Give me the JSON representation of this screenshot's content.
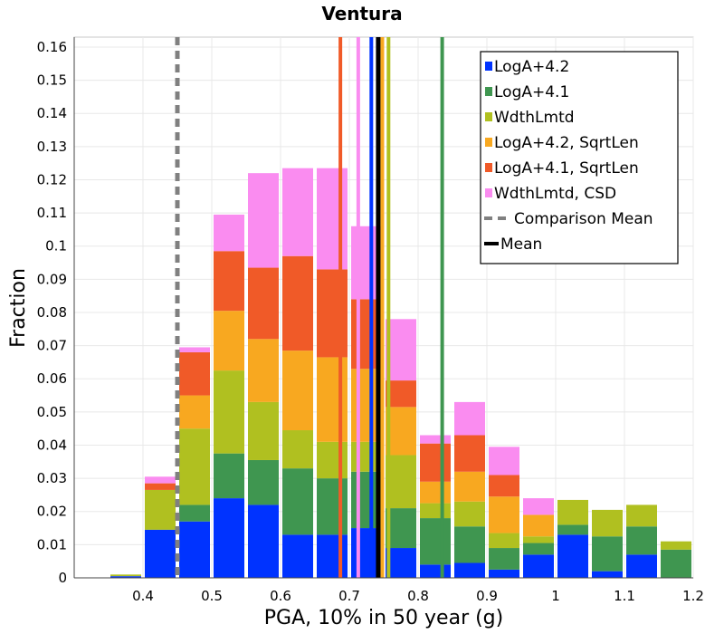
{
  "chart_data": {
    "type": "bar",
    "stacked": true,
    "title": "Ventura",
    "xlabel": "PGA, 10% in 50 year (g)",
    "ylabel": "Fraction",
    "xlim": [
      0.3,
      1.2
    ],
    "ylim": [
      0,
      0.163
    ],
    "grid": true,
    "legend_position": "top-right",
    "x_ticks": [
      "0.4",
      "0.5",
      "0.6",
      "0.7",
      "0.8",
      "0.9",
      "1",
      "1.1",
      "1.2"
    ],
    "y_ticks": [
      "0",
      "0.01",
      "0.02",
      "0.03",
      "0.04",
      "0.05",
      "0.06",
      "0.07",
      "0.08",
      "0.09",
      "0.1",
      "0.11",
      "0.12",
      "0.13",
      "0.14",
      "0.15",
      "0.16"
    ],
    "bin_width": 0.05,
    "bin_centers": [
      0.375,
      0.425,
      0.475,
      0.525,
      0.575,
      0.625,
      0.675,
      0.725,
      0.775,
      0.825,
      0.875,
      0.925,
      0.975,
      1.025,
      1.075,
      1.125,
      1.175
    ],
    "series": [
      {
        "name": "LogA+4.2",
        "color": "#0033ff",
        "values": [
          0.0005,
          0.0145,
          0.017,
          0.024,
          0.022,
          0.013,
          0.013,
          0.015,
          0.009,
          0.004,
          0.0045,
          0.0025,
          0.007,
          0.013,
          0.002,
          0.007,
          0.0
        ]
      },
      {
        "name": "LogA+4.1",
        "color": "#3f9650",
        "values": [
          0.0,
          0.0,
          0.005,
          0.0135,
          0.0135,
          0.02,
          0.017,
          0.017,
          0.012,
          0.014,
          0.011,
          0.0065,
          0.0035,
          0.003,
          0.0105,
          0.0085,
          0.0085
        ]
      },
      {
        "name": "WdthLmtd",
        "color": "#b0c020",
        "values": [
          0.0005,
          0.012,
          0.023,
          0.025,
          0.0175,
          0.0115,
          0.011,
          0.009,
          0.016,
          0.0045,
          0.0075,
          0.0045,
          0.002,
          0.0075,
          0.008,
          0.0065,
          0.0025
        ]
      },
      {
        "name": "LogA+4.2, SqrtLen",
        "color": "#f8a820",
        "values": [
          0.0,
          0.0,
          0.01,
          0.018,
          0.019,
          0.024,
          0.0255,
          0.022,
          0.0145,
          0.0065,
          0.009,
          0.011,
          0.0065,
          0.0,
          0.0,
          0.0,
          0.0
        ]
      },
      {
        "name": "LogA+4.1, SqrtLen",
        "color": "#f05a28",
        "values": [
          0.0,
          0.002,
          0.013,
          0.018,
          0.0215,
          0.0285,
          0.0265,
          0.021,
          0.008,
          0.0115,
          0.011,
          0.0065,
          0.0,
          0.0,
          0.0,
          0.0,
          0.0
        ]
      },
      {
        "name": "WdthLmtd, CSD",
        "color": "#fa8cf0",
        "values": [
          0.0,
          0.002,
          0.0015,
          0.011,
          0.0285,
          0.0265,
          0.0305,
          0.022,
          0.0185,
          0.0025,
          0.01,
          0.0085,
          0.005,
          0.0,
          0.0,
          0.0,
          0.0
        ]
      }
    ],
    "vertical_lines": [
      {
        "name": "LogA+4.2 mean",
        "x": 0.732,
        "color": "#0033ff",
        "ytop": 0.163
      },
      {
        "name": "LogA+4.1 mean",
        "x": 0.835,
        "color": "#3f9650",
        "ytop": 0.163
      },
      {
        "name": "WdthLmtd mean",
        "x": 0.757,
        "color": "#b0c020",
        "ytop": 0.163
      },
      {
        "name": "LogA+4.2, SqrtLen mean",
        "x": 0.748,
        "color": "#f8a820",
        "ytop": 0.163
      },
      {
        "name": "LogA+4.1, SqrtLen mean",
        "x": 0.687,
        "color": "#f05a28",
        "ytop": 0.163
      },
      {
        "name": "WdthLmtd, CSD mean",
        "x": 0.713,
        "color": "#fa8cf0",
        "ytop": 0.163
      }
    ],
    "comparison_mean": {
      "label": "Comparison Mean",
      "x": 0.45,
      "color": "#808080"
    },
    "mean": {
      "label": "Mean",
      "x": 0.742,
      "color": "#000000"
    }
  }
}
